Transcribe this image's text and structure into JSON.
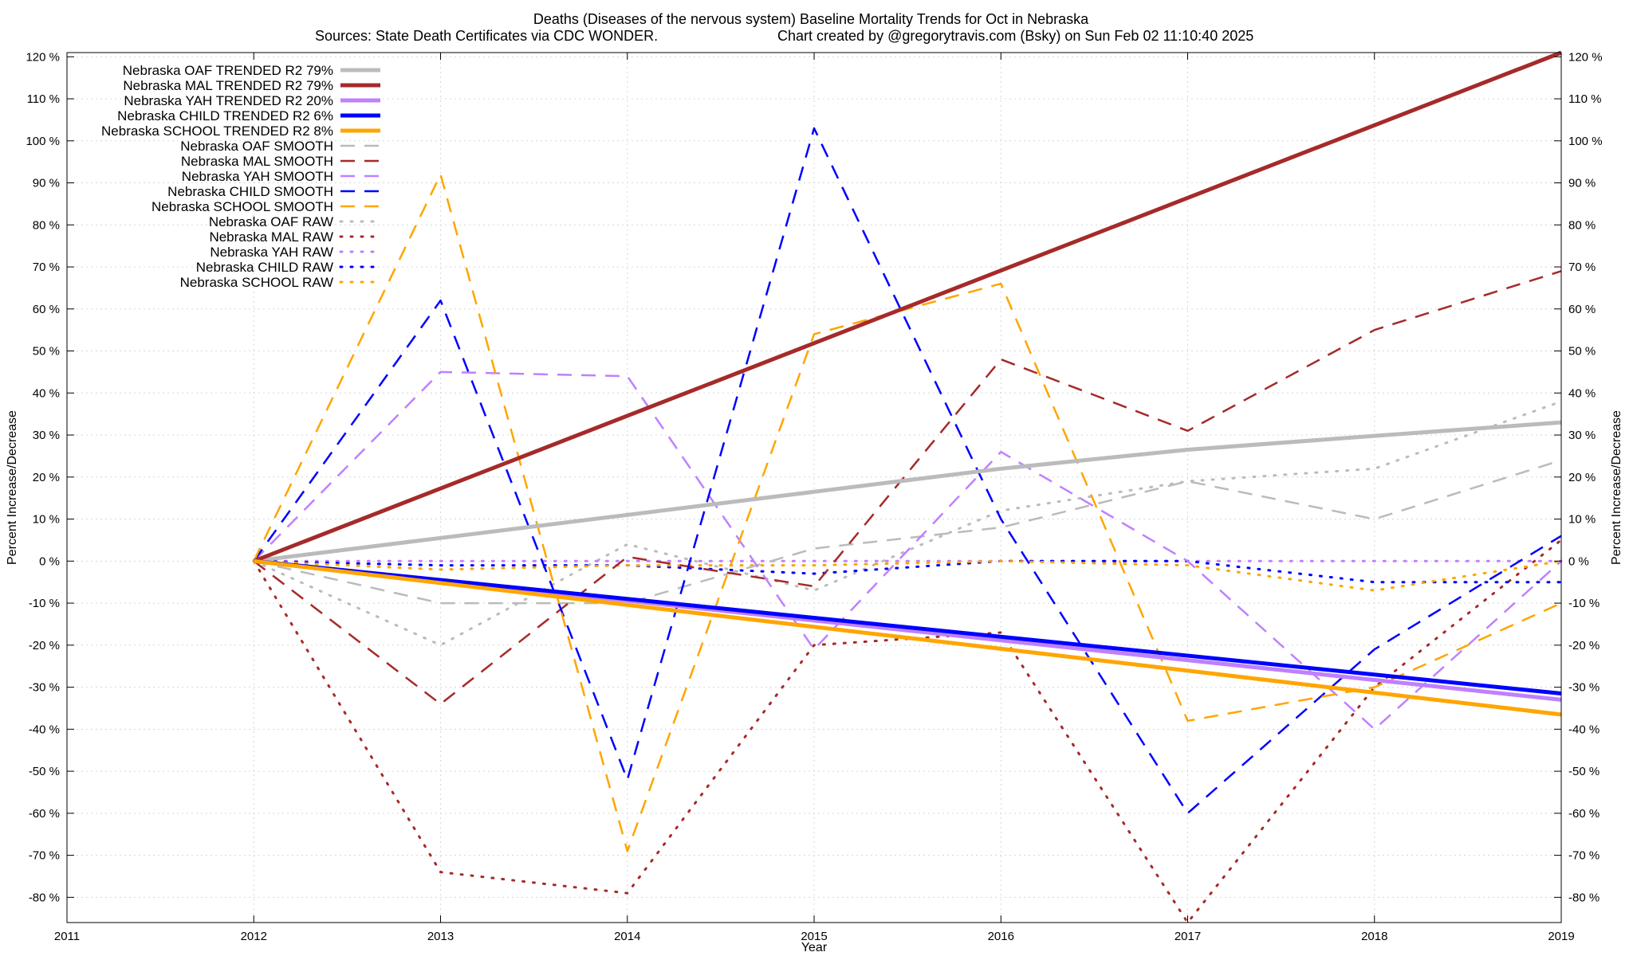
{
  "chart_data": {
    "type": "line",
    "title": "Deaths (Diseases of the nervous system)  Baseline Mortality Trends for Oct in Nebraska",
    "subtitle_left": "Sources: State Death Certificates via CDC WONDER.",
    "subtitle_right": "Chart created by @gregorytravis.com (Bsky) on Sun Feb 02 11:10:40 2025",
    "xlabel": "Year",
    "ylabel": "Percent Increase/Decrease",
    "y2label": "Percent Increase/Decrease",
    "xlim": [
      2011,
      2019
    ],
    "ylim": [
      -86,
      121
    ],
    "x_ticks": [
      2011,
      2012,
      2013,
      2014,
      2015,
      2016,
      2017,
      2018,
      2019
    ],
    "y_ticks": [
      -80,
      -70,
      -60,
      -50,
      -40,
      -30,
      -20,
      -10,
      0,
      10,
      20,
      30,
      40,
      50,
      60,
      70,
      80,
      90,
      100,
      110,
      120
    ],
    "y_tick_suffix": " %",
    "grid": true,
    "legend_position": "top-left",
    "series": [
      {
        "name": "Nebraska OAF TRENDED R2  79%",
        "color": "#bbbbbb",
        "style": "solid",
        "x": [
          2012,
          2013,
          2014,
          2015,
          2016,
          2017,
          2018,
          2019
        ],
        "y": [
          0,
          5.5,
          11,
          16.5,
          22,
          26.5,
          29.8,
          33
        ]
      },
      {
        "name": "Nebraska MAL TRENDED R2  79%",
        "color": "#a52a2a",
        "style": "solid",
        "x": [
          2012,
          2019
        ],
        "y": [
          0,
          121
        ]
      },
      {
        "name": "Nebraska YAH TRENDED R2  20%",
        "color": "#bf80ff",
        "style": "solid",
        "x": [
          2012,
          2019
        ],
        "y": [
          0,
          -33
        ]
      },
      {
        "name": "Nebraska CHILD TRENDED R2  6%",
        "color": "#0000ff",
        "style": "solid",
        "x": [
          2012,
          2019
        ],
        "y": [
          0,
          -31.5
        ]
      },
      {
        "name": "Nebraska SCHOOL TRENDED R2  8%",
        "color": "#ffa500",
        "style": "solid",
        "x": [
          2012,
          2019
        ],
        "y": [
          0,
          -36.5
        ]
      },
      {
        "name": "Nebraska OAF SMOOTH",
        "color": "#bbbbbb",
        "style": "dashed",
        "x": [
          2012,
          2013,
          2014,
          2015,
          2016,
          2017,
          2018,
          2019
        ],
        "y": [
          0,
          -10,
          -10,
          3,
          8,
          19,
          10,
          24
        ]
      },
      {
        "name": "Nebraska MAL SMOOTH",
        "color": "#a52a2a",
        "style": "dashed",
        "x": [
          2012,
          2013,
          2014,
          2015,
          2016,
          2017,
          2018,
          2019
        ],
        "y": [
          0,
          -34,
          1,
          -6,
          48,
          31,
          55,
          69
        ]
      },
      {
        "name": "Nebraska YAH SMOOTH",
        "color": "#bf80ff",
        "style": "dashed",
        "x": [
          2012,
          2013,
          2014,
          2015,
          2016,
          2017,
          2018,
          2019
        ],
        "y": [
          0,
          45,
          44,
          -21,
          26,
          0,
          -40,
          0
        ]
      },
      {
        "name": "Nebraska CHILD SMOOTH",
        "color": "#0000ff",
        "style": "dashed",
        "x": [
          2012,
          2013,
          2014,
          2015,
          2016,
          2017,
          2018,
          2019
        ],
        "y": [
          0,
          62,
          -52,
          103,
          10,
          -60,
          -21,
          6
        ]
      },
      {
        "name": "Nebraska SCHOOL SMOOTH",
        "color": "#ffa500",
        "style": "dashed",
        "x": [
          2012,
          2013,
          2014,
          2015,
          2016,
          2017,
          2018,
          2019
        ],
        "y": [
          0,
          92,
          -69,
          54,
          66,
          -38,
          -30,
          -10
        ]
      },
      {
        "name": "Nebraska OAF RAW",
        "color": "#bbbbbb",
        "style": "dotted",
        "x": [
          2012,
          2013,
          2014,
          2015,
          2016,
          2017,
          2018,
          2019
        ],
        "y": [
          0,
          -20,
          4,
          -7,
          12,
          19,
          22,
          38
        ]
      },
      {
        "name": "Nebraska MAL RAW",
        "color": "#a52a2a",
        "style": "dotted",
        "x": [
          2012,
          2013,
          2014,
          2015,
          2016,
          2017,
          2018,
          2019
        ],
        "y": [
          0,
          -74,
          -79,
          -20,
          -17,
          -86,
          -30,
          5
        ]
      },
      {
        "name": "Nebraska YAH RAW",
        "color": "#bf80ff",
        "style": "dotted",
        "x": [
          2012,
          2013,
          2014,
          2015,
          2016,
          2017,
          2018,
          2019
        ],
        "y": [
          0,
          0,
          0,
          0,
          0,
          0,
          0,
          0
        ]
      },
      {
        "name": "Nebraska CHILD RAW",
        "color": "#0000ff",
        "style": "dotted",
        "x": [
          2012,
          2013,
          2014,
          2015,
          2016,
          2017,
          2018,
          2019
        ],
        "y": [
          0,
          -1,
          -1,
          -3,
          0,
          0,
          -5,
          -5
        ]
      },
      {
        "name": "Nebraska SCHOOL RAW",
        "color": "#ffa500",
        "style": "dotted",
        "x": [
          2012,
          2013,
          2014,
          2015,
          2016,
          2017,
          2018,
          2019
        ],
        "y": [
          0,
          -2,
          -1,
          -1,
          0,
          -1,
          -7,
          0
        ]
      }
    ]
  }
}
